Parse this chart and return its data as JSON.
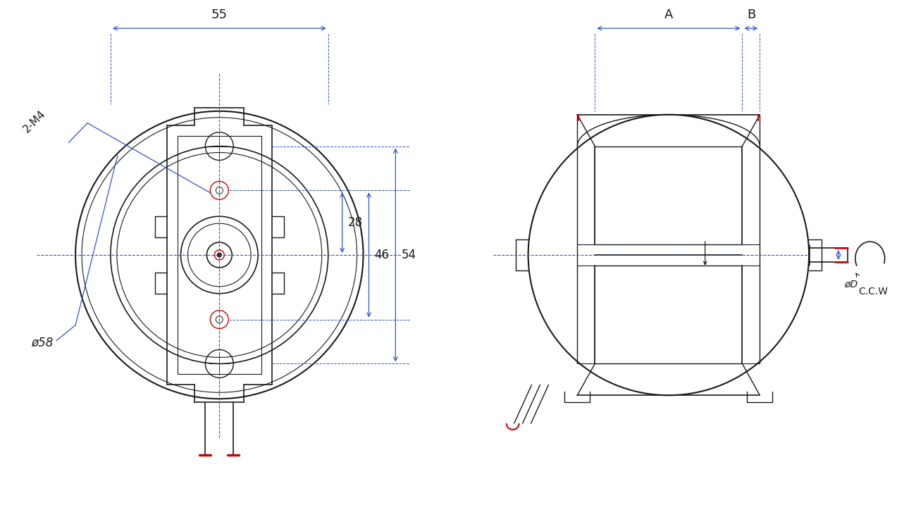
{
  "bg_color": "#ffffff",
  "line_color": "#1a1a1a",
  "blue_dim": "#3355cc",
  "red_color": "#cc0000",
  "fig_width": 13.0,
  "fig_height": 7.17,
  "dpi": 100,
  "annotations": {
    "dim_55": "55",
    "dim_28": "28",
    "dim_46": "46",
    "dim_54": "54",
    "dim_phi58": "ø58",
    "dim_2M4": "2-M4",
    "dim_A": "A",
    "dim_B": "B",
    "dim_D": "øD",
    "dim_CCW": "C.C.W"
  }
}
